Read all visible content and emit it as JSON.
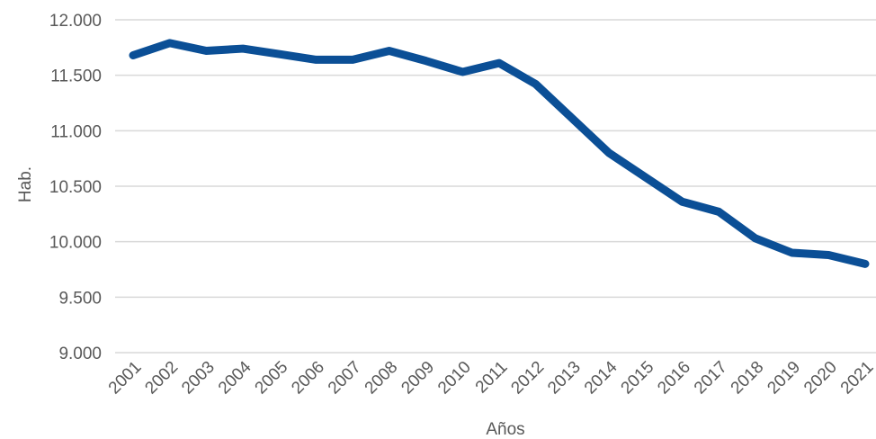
{
  "chart_data": {
    "type": "line",
    "title": "",
    "xlabel": "Años",
    "ylabel": "Hab.",
    "categories": [
      "2001",
      "2002",
      "2003",
      "2004",
      "2005",
      "2006",
      "2007",
      "2008",
      "2009",
      "2010",
      "2011",
      "2012",
      "2013",
      "2014",
      "2015",
      "2016",
      "2017",
      "2018",
      "2019",
      "2020",
      "2021"
    ],
    "series": [
      {
        "values": [
          11680,
          11790,
          11720,
          11740,
          11690,
          11640,
          11640,
          11720,
          11630,
          11530,
          11610,
          11420,
          11110,
          10800,
          10580,
          10360,
          10270,
          10030,
          9900,
          9880,
          9800
        ]
      }
    ],
    "ylim": [
      9000,
      12000
    ],
    "yticks": [
      9000,
      9500,
      10000,
      10500,
      11000,
      11500,
      12000
    ],
    "ytick_labels": [
      "9.000",
      "9.500",
      "10.000",
      "10.500",
      "11.000",
      "11.500",
      "12.000"
    ],
    "grid": true,
    "legend": "none",
    "colors": {
      "line": "#0b4f96",
      "grid": "#d9d9d9",
      "text": "#595959"
    }
  }
}
